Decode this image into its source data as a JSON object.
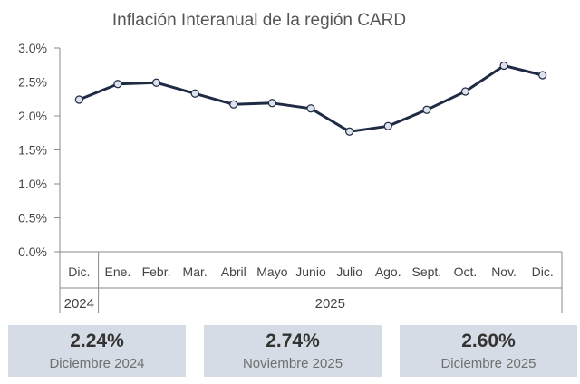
{
  "chart_data": {
    "type": "line",
    "title": "Inflación Interanual de la región CARD",
    "categories": [
      "Dic.",
      "Ene.",
      "Febr.",
      "Mar.",
      "Abril",
      "Mayo",
      "Junio",
      "Julio",
      "Ago.",
      "Sept.",
      "Oct.",
      "Nov.",
      "Dic."
    ],
    "year_groups": [
      {
        "label": "2024",
        "span": 1
      },
      {
        "label": "2025",
        "span": 12
      }
    ],
    "series": [
      {
        "values": [
          2.24,
          2.47,
          2.49,
          2.33,
          2.17,
          2.19,
          2.11,
          1.77,
          1.85,
          2.09,
          2.36,
          2.74,
          2.6
        ]
      }
    ],
    "ylim": [
      0,
      3.0
    ],
    "yticks": [
      "0.0%",
      "0.5%",
      "1.0%",
      "1.5%",
      "2.0%",
      "2.5%",
      "3.0%"
    ],
    "ytick_values": [
      0,
      0.5,
      1.0,
      1.5,
      2.0,
      2.5,
      3.0
    ],
    "grid": false,
    "colors": {
      "line": "#1f2a44",
      "marker_fill": "#dde2ec"
    }
  },
  "cards": [
    {
      "value": "2.24%",
      "label": "Diciembre 2024"
    },
    {
      "value": "2.74%",
      "label": "Noviembre 2025"
    },
    {
      "value": "2.60%",
      "label": "Diciembre 2025"
    }
  ],
  "colors": {
    "card_bg": "#d6dce5"
  }
}
